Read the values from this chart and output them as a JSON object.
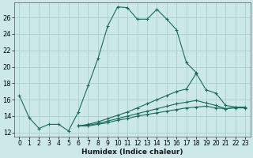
{
  "xlabel": "Humidex (Indice chaleur)",
  "bg_color": "#cce8e8",
  "grid_color": "#aacfcf",
  "line_color": "#1a6b5a",
  "xlim": [
    -0.5,
    23.5
  ],
  "ylim": [
    11.5,
    27.8
  ],
  "xticks": [
    0,
    1,
    2,
    3,
    4,
    5,
    6,
    7,
    8,
    9,
    10,
    11,
    12,
    13,
    14,
    15,
    16,
    17,
    18,
    19,
    20,
    21,
    22,
    23
  ],
  "yticks": [
    12,
    14,
    16,
    18,
    20,
    22,
    24,
    26
  ],
  "series": [
    {
      "x": [
        0,
        1,
        2,
        3,
        4,
        5,
        6,
        7,
        8,
        9,
        10,
        11,
        12,
        13,
        14,
        15,
        16,
        17,
        18
      ],
      "y": [
        16.5,
        13.8,
        12.5,
        13.0,
        13.0,
        12.2,
        14.5,
        17.7,
        21.0,
        25.0,
        27.3,
        27.2,
        25.8,
        25.8,
        27.0,
        25.8,
        24.5,
        20.5,
        19.3
      ],
      "linestyle": "-"
    },
    {
      "x": [
        6,
        7,
        8,
        9,
        10,
        11,
        12,
        13,
        14,
        15,
        16,
        17,
        18,
        19,
        20,
        21,
        22,
        23
      ],
      "y": [
        12.8,
        13.0,
        13.3,
        13.7,
        14.1,
        14.5,
        15.0,
        15.5,
        16.0,
        16.5,
        17.0,
        17.3,
        19.2,
        17.2,
        16.8,
        15.3,
        15.1,
        15.1
      ],
      "linestyle": "-"
    },
    {
      "x": [
        6,
        7,
        8,
        9,
        10,
        11,
        12,
        13,
        14,
        15,
        16,
        17,
        18,
        19,
        20,
        21,
        22,
        23
      ],
      "y": [
        12.8,
        12.9,
        13.1,
        13.4,
        13.7,
        14.0,
        14.3,
        14.6,
        14.9,
        15.2,
        15.5,
        15.7,
        15.9,
        15.6,
        15.3,
        14.9,
        15.0,
        15.0
      ],
      "linestyle": "-"
    },
    {
      "x": [
        6,
        7,
        8,
        9,
        10,
        11,
        12,
        13,
        14,
        15,
        16,
        17,
        18,
        19,
        20,
        21,
        22,
        23
      ],
      "y": [
        12.8,
        12.8,
        13.0,
        13.2,
        13.5,
        13.7,
        14.0,
        14.2,
        14.4,
        14.6,
        14.8,
        15.0,
        15.1,
        15.2,
        15.0,
        14.9,
        15.1,
        15.1
      ],
      "linestyle": "-"
    }
  ]
}
